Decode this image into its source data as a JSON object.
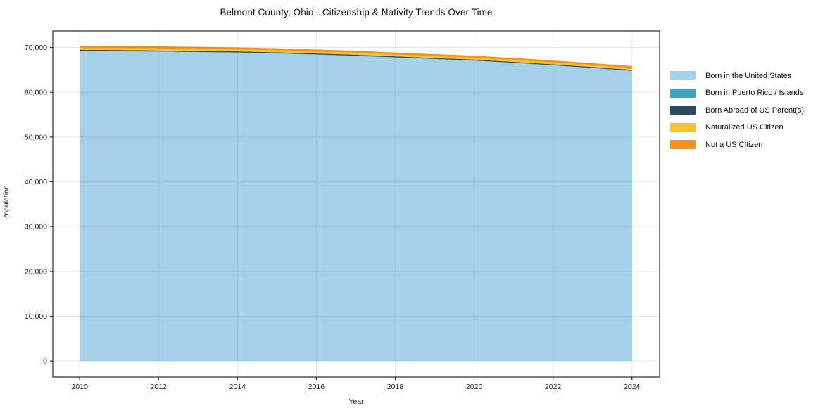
{
  "figure": {
    "title": "Belmont County, Ohio - Citizenship & Nativity Trends Over Time",
    "xlabel": "Year",
    "ylabel": "Population"
  },
  "chart_data": {
    "type": "area",
    "stacked": true,
    "title": "Belmont County, Ohio - Citizenship & Nativity Trends Over Time",
    "xlabel": "Year",
    "ylabel": "Population",
    "grid": true,
    "legend_position": "right-outside",
    "x": [
      2010,
      2011,
      2012,
      2013,
      2014,
      2015,
      2016,
      2017,
      2018,
      2019,
      2020,
      2021,
      2022,
      2023,
      2024
    ],
    "series": [
      {
        "name": "Born in the United States",
        "color": "#a5d1e8",
        "values": [
          69200,
          69150,
          69050,
          68950,
          68850,
          68650,
          68400,
          68100,
          67750,
          67400,
          67050,
          66550,
          66000,
          65400,
          64750
        ]
      },
      {
        "name": "Born in Puerto Rico / Islands",
        "color": "#41a3bd",
        "values": [
          60,
          60,
          65,
          60,
          55,
          60,
          65,
          60,
          55,
          50,
          55,
          50,
          50,
          45,
          50
        ]
      },
      {
        "name": "Born Abroad of US Parent(s)",
        "color": "#2b4a5c",
        "values": [
          230,
          225,
          220,
          225,
          220,
          215,
          210,
          215,
          210,
          205,
          200,
          195,
          200,
          195,
          200
        ]
      },
      {
        "name": "Naturalized US Citizen",
        "color": "#fcc12e",
        "values": [
          470,
          465,
          460,
          455,
          460,
          450,
          445,
          450,
          440,
          435,
          430,
          435,
          430,
          425,
          430
        ]
      },
      {
        "name": "Not a US Citizen",
        "color": "#f2911d",
        "values": [
          460,
          455,
          460,
          450,
          445,
          450,
          440,
          435,
          440,
          430,
          425,
          430,
          425,
          430,
          425
        ]
      }
    ],
    "xlim": [
      2009.32,
      2024.7
    ],
    "ylim": [
      -3600,
      73700
    ],
    "x_ticks": [
      2010,
      2012,
      2014,
      2016,
      2018,
      2020,
      2022,
      2024
    ],
    "x_ticklabels": [
      "2010",
      "2012",
      "2014",
      "2016",
      "2018",
      "2020",
      "2022",
      "2024"
    ],
    "y_ticks": [
      0,
      10000,
      20000,
      30000,
      40000,
      50000,
      60000,
      70000
    ],
    "y_ticklabels": [
      "0",
      "10,000",
      "20,000",
      "30,000",
      "40,000",
      "50,000",
      "60,000",
      "70,000"
    ]
  },
  "legend": {
    "entries": [
      {
        "label": "Born in the United States",
        "color": "#a5d1e8"
      },
      {
        "label": "Born in Puerto Rico / Islands",
        "color": "#41a3bd"
      },
      {
        "label": "Born Abroad of US Parent(s)",
        "color": "#2b4a5c"
      },
      {
        "label": "Naturalized US Citizen",
        "color": "#fcc12e"
      },
      {
        "label": "Not a US Citizen",
        "color": "#f2911d"
      }
    ]
  }
}
